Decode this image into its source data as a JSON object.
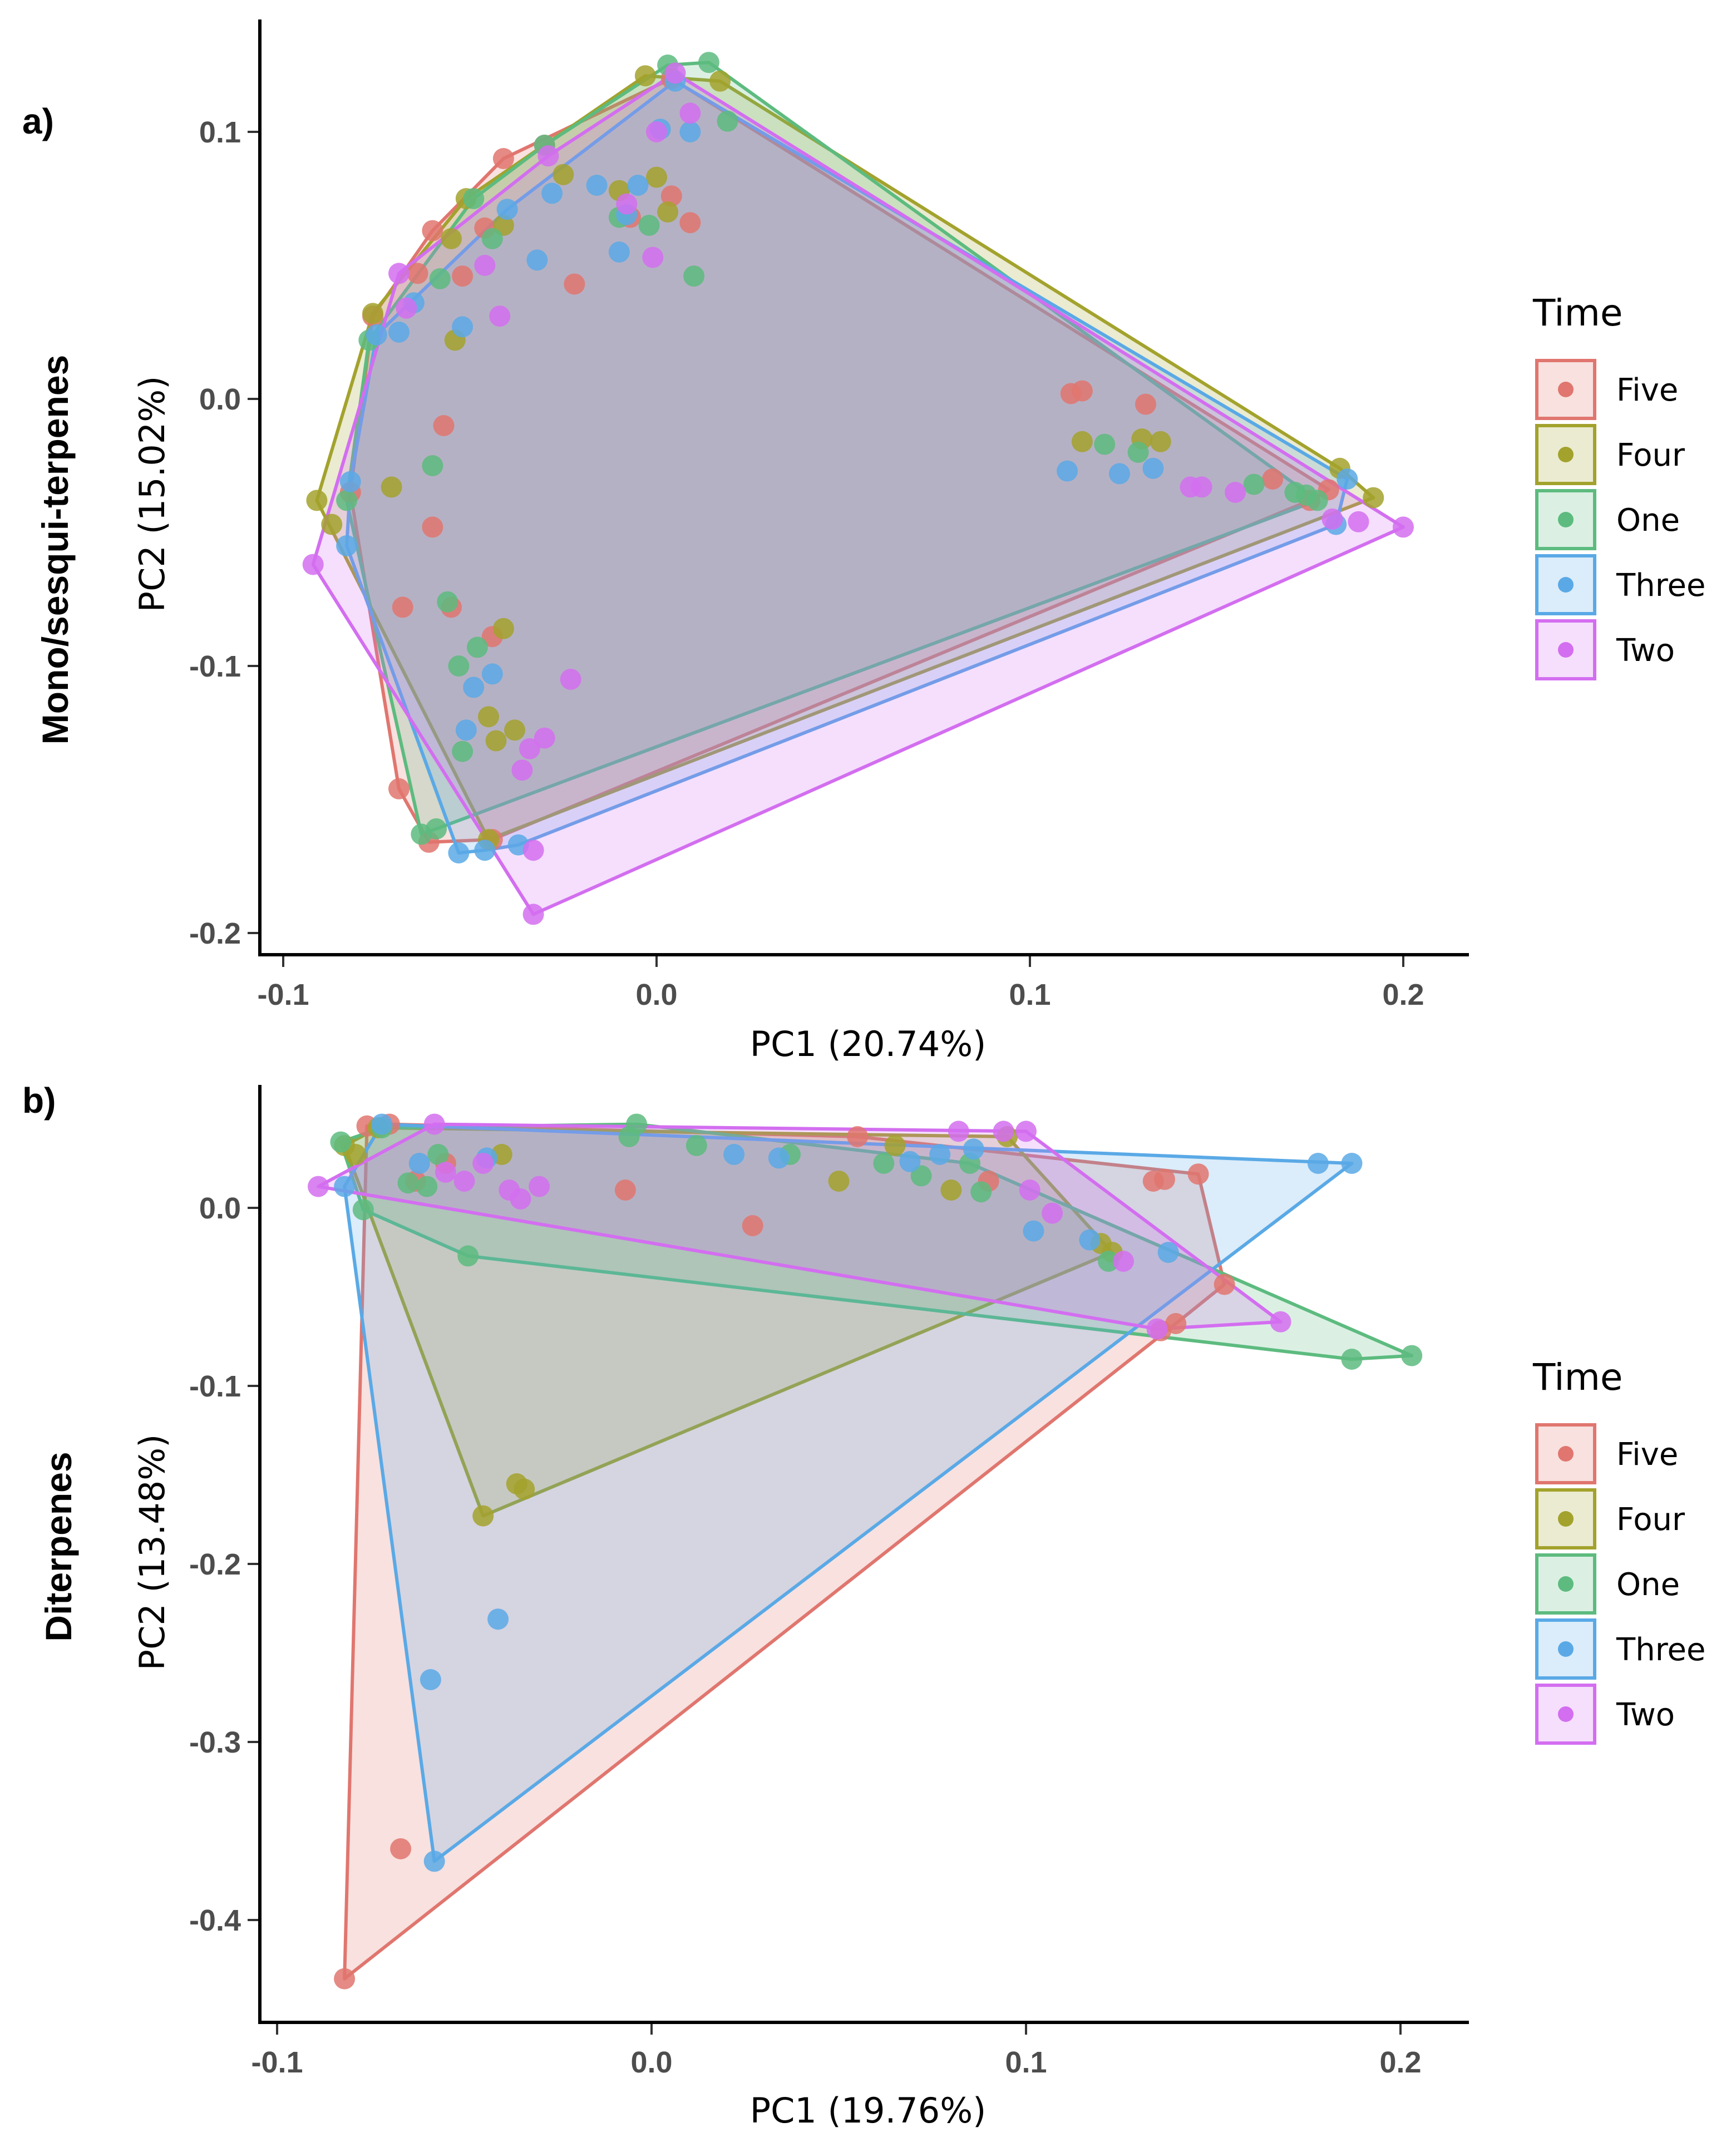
{
  "chart_data": [
    {
      "type": "scatter",
      "panel_label": "a)",
      "row_title": "Mono/sesqui-terpenes",
      "xlabel": "PC1 (20.74%)",
      "ylabel": "PC2 (15.02%)",
      "xlim": [
        -0.105,
        0.215
      ],
      "ylim": [
        -0.21,
        0.142
      ],
      "xticks": [
        -0.1,
        0.0,
        0.1,
        0.2
      ],
      "xtick_labels": [
        "-0.1",
        "0.0",
        "0.1",
        "0.2"
      ],
      "yticks": [
        0.1,
        0.0,
        -0.1,
        -0.2
      ],
      "ytick_labels": [
        "0.1",
        "0.0",
        "-0.1",
        "-0.2"
      ],
      "grid": false,
      "legend": {
        "title": "Time",
        "placement": "right"
      },
      "hulls": true,
      "series": [
        {
          "name": "Five",
          "color": "#E0766F",
          "points": [
            [
              -0.061,
              -0.166
            ],
            [
              -0.069,
              -0.146
            ],
            [
              -0.082,
              -0.035
            ],
            [
              -0.076,
              0.031
            ],
            [
              -0.064,
              0.047
            ],
            [
              -0.041,
              0.09
            ],
            [
              -0.03,
              0.095
            ],
            [
              0.004,
              0.12
            ],
            [
              0.18,
              -0.034
            ],
            [
              0.175,
              -0.038
            ],
            [
              -0.044,
              -0.165
            ],
            [
              -0.057,
              -0.01
            ],
            [
              -0.06,
              -0.048
            ],
            [
              -0.068,
              -0.078
            ],
            [
              -0.055,
              -0.078
            ],
            [
              -0.044,
              -0.089
            ],
            [
              0.114,
              0.003
            ],
            [
              0.111,
              0.002
            ],
            [
              0.131,
              -0.002
            ],
            [
              -0.007,
              0.068
            ],
            [
              0.004,
              0.076
            ],
            [
              0.009,
              0.066
            ],
            [
              -0.022,
              0.043
            ],
            [
              -0.046,
              0.064
            ],
            [
              -0.06,
              0.063
            ],
            [
              0.165,
              -0.03
            ],
            [
              -0.052,
              0.046
            ]
          ]
        },
        {
          "name": "Four",
          "color": "#A3A22D",
          "points": [
            [
              -0.091,
              -0.038
            ],
            [
              -0.087,
              -0.047
            ],
            [
              -0.045,
              -0.165
            ],
            [
              0.192,
              -0.037
            ],
            [
              0.183,
              -0.026
            ],
            [
              0.017,
              0.119
            ],
            [
              -0.003,
              0.121
            ],
            [
              -0.051,
              0.075
            ],
            [
              -0.076,
              0.032
            ],
            [
              -0.071,
              -0.033
            ],
            [
              -0.041,
              -0.086
            ],
            [
              -0.045,
              -0.119
            ],
            [
              -0.038,
              -0.124
            ],
            [
              -0.043,
              -0.128
            ],
            [
              0.0,
              0.083
            ],
            [
              -0.025,
              0.084
            ],
            [
              -0.01,
              0.078
            ],
            [
              0.003,
              0.07
            ],
            [
              0.135,
              -0.016
            ],
            [
              0.114,
              -0.016
            ],
            [
              0.13,
              -0.015
            ],
            [
              -0.041,
              0.065
            ],
            [
              -0.054,
              0.022
            ],
            [
              -0.055,
              0.06
            ]
          ]
        },
        {
          "name": "One",
          "color": "#5DBB7F",
          "points": [
            [
              -0.077,
              0.022
            ],
            [
              -0.083,
              -0.038
            ],
            [
              -0.059,
              -0.161
            ],
            [
              -0.063,
              -0.163
            ],
            [
              0.177,
              -0.038
            ],
            [
              0.174,
              -0.036
            ],
            [
              0.014,
              0.126
            ],
            [
              0.003,
              0.125
            ],
            [
              -0.03,
              0.095
            ],
            [
              -0.06,
              -0.025
            ],
            [
              -0.056,
              -0.076
            ],
            [
              -0.053,
              -0.1
            ],
            [
              -0.048,
              -0.093
            ],
            [
              -0.052,
              -0.132
            ],
            [
              -0.044,
              0.06
            ],
            [
              -0.058,
              0.045
            ],
            [
              0.01,
              0.046
            ],
            [
              0.019,
              0.104
            ],
            [
              0.12,
              -0.017
            ],
            [
              0.129,
              -0.02
            ],
            [
              0.16,
              -0.032
            ],
            [
              0.171,
              -0.035
            ],
            [
              -0.01,
              0.068
            ],
            [
              -0.002,
              0.065
            ],
            [
              -0.049,
              0.075
            ]
          ]
        },
        {
          "name": "Three",
          "color": "#5AA9E6",
          "points": [
            [
              -0.083,
              -0.055
            ],
            [
              -0.082,
              -0.031
            ],
            [
              -0.075,
              0.024
            ],
            [
              -0.065,
              0.036
            ],
            [
              -0.04,
              0.071
            ],
            [
              0.005,
              0.119
            ],
            [
              0.185,
              -0.03
            ],
            [
              0.182,
              -0.047
            ],
            [
              -0.037,
              -0.167
            ],
            [
              -0.046,
              -0.169
            ],
            [
              -0.053,
              -0.17
            ],
            [
              -0.052,
              0.027
            ],
            [
              -0.044,
              -0.103
            ],
            [
              -0.049,
              -0.108
            ],
            [
              -0.051,
              -0.124
            ],
            [
              -0.032,
              0.052
            ],
            [
              -0.01,
              0.055
            ],
            [
              -0.005,
              0.08
            ],
            [
              -0.016,
              0.08
            ],
            [
              0.001,
              0.101
            ],
            [
              0.009,
              0.1
            ],
            [
              0.11,
              -0.027
            ],
            [
              0.124,
              -0.028
            ],
            [
              0.133,
              -0.026
            ],
            [
              -0.028,
              0.077
            ],
            [
              -0.069,
              0.025
            ],
            [
              -0.008,
              0.069
            ]
          ]
        },
        {
          "name": "Two",
          "color": "#D36EF0",
          "points": [
            [
              -0.092,
              -0.062
            ],
            [
              -0.033,
              -0.193
            ],
            [
              0.2,
              -0.048
            ],
            [
              -0.069,
              0.047
            ],
            [
              -0.029,
              0.091
            ],
            [
              0.005,
              0.122
            ],
            [
              -0.033,
              -0.169
            ],
            [
              0.188,
              -0.046
            ],
            [
              0.181,
              -0.045
            ],
            [
              -0.036,
              -0.139
            ],
            [
              -0.023,
              -0.105
            ],
            [
              -0.034,
              -0.131
            ],
            [
              -0.03,
              -0.127
            ],
            [
              0.143,
              -0.033
            ],
            [
              0.146,
              -0.033
            ],
            [
              0.155,
              -0.035
            ],
            [
              -0.046,
              0.05
            ],
            [
              -0.042,
              0.031
            ],
            [
              0.0,
              0.1
            ],
            [
              0.009,
              0.107
            ],
            [
              -0.001,
              0.053
            ],
            [
              -0.067,
              0.034
            ],
            [
              -0.008,
              0.073
            ]
          ]
        }
      ]
    },
    {
      "type": "scatter",
      "panel_label": "b)",
      "row_title": "Diterpenes",
      "xlabel": "PC1 (19.76%)",
      "ylabel": "PC2 (13.48%)",
      "xlim": [
        -0.104,
        0.218
      ],
      "ylim": [
        -0.455,
        0.069
      ],
      "xticks": [
        -0.1,
        0.0,
        0.1,
        0.2
      ],
      "xtick_labels": [
        "-0.1",
        "0.0",
        "0.1",
        "0.2"
      ],
      "yticks": [
        0.0,
        -0.1,
        -0.2,
        -0.3,
        -0.4
      ],
      "ytick_labels": [
        "0.0",
        "-0.1",
        "-0.2",
        "-0.3",
        "-0.4"
      ],
      "grid": false,
      "legend": {
        "title": "Time",
        "placement": "right"
      },
      "hulls": true,
      "series": [
        {
          "name": "Five",
          "color": "#E0766F",
          "points": [
            [
              -0.082,
              -0.433
            ],
            [
              0.153,
              -0.043
            ],
            [
              0.146,
              0.019
            ],
            [
              -0.07,
              0.047
            ],
            [
              -0.076,
              0.046
            ],
            [
              -0.067,
              -0.36
            ],
            [
              0.137,
              0.016
            ],
            [
              0.134,
              0.015
            ],
            [
              0.14,
              -0.065
            ],
            [
              0.136,
              -0.069
            ],
            [
              -0.007,
              0.01
            ],
            [
              0.027,
              -0.01
            ],
            [
              -0.055,
              0.025
            ],
            [
              -0.063,
              0.015
            ],
            [
              0.055,
              0.04
            ],
            [
              0.09,
              0.015
            ]
          ]
        },
        {
          "name": "Four",
          "color": "#A3A22D",
          "points": [
            [
              -0.082,
              0.035
            ],
            [
              -0.045,
              -0.173
            ],
            [
              -0.034,
              -0.158
            ],
            [
              0.123,
              -0.025
            ],
            [
              0.095,
              0.04
            ],
            [
              -0.073,
              0.045
            ],
            [
              -0.036,
              -0.155
            ],
            [
              -0.079,
              0.03
            ],
            [
              0.05,
              0.015
            ],
            [
              0.08,
              0.01
            ],
            [
              0.12,
              -0.02
            ],
            [
              -0.04,
              0.03
            ],
            [
              0.065,
              0.035
            ]
          ]
        },
        {
          "name": "One",
          "color": "#5DBB7F",
          "points": [
            [
              -0.083,
              0.037
            ],
            [
              -0.077,
              -0.001
            ],
            [
              -0.049,
              -0.027
            ],
            [
              0.187,
              -0.085
            ],
            [
              0.203,
              -0.083
            ],
            [
              0.085,
              0.025
            ],
            [
              -0.004,
              0.047
            ],
            [
              -0.072,
              0.045
            ],
            [
              -0.006,
              0.04
            ],
            [
              0.012,
              0.035
            ],
            [
              0.037,
              0.03
            ],
            [
              0.062,
              0.025
            ],
            [
              0.072,
              0.018
            ],
            [
              0.088,
              0.009
            ],
            [
              0.122,
              -0.03
            ],
            [
              -0.057,
              0.03
            ],
            [
              -0.06,
              0.012
            ],
            [
              -0.065,
              0.014
            ]
          ]
        },
        {
          "name": "Three",
          "color": "#5AA9E6",
          "points": [
            [
              -0.082,
              0.012
            ],
            [
              -0.058,
              -0.367
            ],
            [
              0.187,
              0.025
            ],
            [
              0.178,
              0.025
            ],
            [
              -0.072,
              0.047
            ],
            [
              -0.059,
              -0.265
            ],
            [
              -0.041,
              -0.231
            ],
            [
              0.022,
              0.03
            ],
            [
              0.034,
              0.028
            ],
            [
              0.069,
              0.026
            ],
            [
              0.077,
              0.03
            ],
            [
              0.102,
              -0.013
            ],
            [
              0.117,
              -0.018
            ],
            [
              0.138,
              -0.025
            ],
            [
              -0.044,
              0.028
            ],
            [
              -0.062,
              0.025
            ],
            [
              0.086,
              0.033
            ]
          ]
        },
        {
          "name": "Two",
          "color": "#D36EF0",
          "points": [
            [
              -0.089,
              0.012
            ],
            [
              -0.058,
              0.047
            ],
            [
              0.082,
              0.043
            ],
            [
              0.094,
              0.043
            ],
            [
              0.1,
              0.043
            ],
            [
              0.168,
              -0.064
            ],
            [
              0.135,
              -0.068
            ],
            [
              -0.055,
              0.02
            ],
            [
              -0.05,
              0.015
            ],
            [
              -0.038,
              0.01
            ],
            [
              -0.035,
              0.005
            ],
            [
              -0.03,
              0.012
            ],
            [
              0.101,
              0.01
            ],
            [
              0.107,
              -0.003
            ],
            [
              0.126,
              -0.03
            ],
            [
              -0.045,
              0.025
            ]
          ]
        }
      ]
    }
  ],
  "legend": {
    "title": "Time",
    "entries": [
      "Five",
      "Four",
      "One",
      "Three",
      "Two"
    ]
  }
}
